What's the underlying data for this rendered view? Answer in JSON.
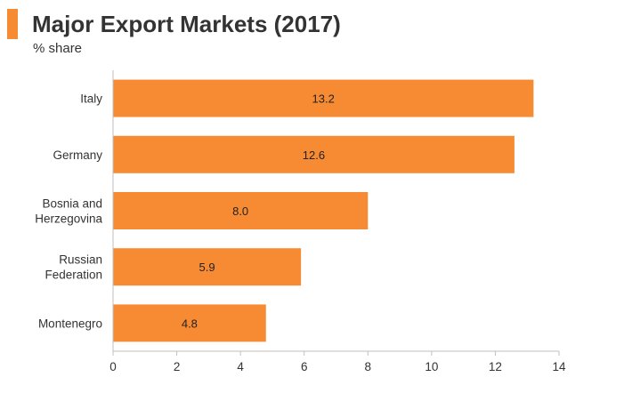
{
  "chart_data": {
    "type": "bar",
    "orientation": "horizontal",
    "title": "Major Export Markets (2017)",
    "subtitle": "% share",
    "categories": [
      "Italy",
      "Germany",
      "Bosnia and Herzegovina",
      "Russian Federation",
      "Montenegro"
    ],
    "category_label_lines": [
      [
        "Italy"
      ],
      [
        "Germany"
      ],
      [
        "Bosnia and",
        "Herzegovina"
      ],
      [
        "Russian",
        "Federation"
      ],
      [
        "Montenegro"
      ]
    ],
    "values": [
      13.2,
      12.6,
      8.0,
      5.9,
      4.8
    ],
    "value_labels": [
      "13.2",
      "12.6",
      "8.0",
      "5.9",
      "4.8"
    ],
    "xlim": [
      0,
      14
    ],
    "xticks": [
      0,
      2,
      4,
      6,
      8,
      10,
      12,
      14
    ],
    "xlabel": "",
    "ylabel": "",
    "grid": false,
    "legend": "none",
    "bar_color": "#F68B33",
    "accent_color": "#F68B33",
    "text_color": "#333333",
    "axis_color": "#BFBFBF"
  }
}
